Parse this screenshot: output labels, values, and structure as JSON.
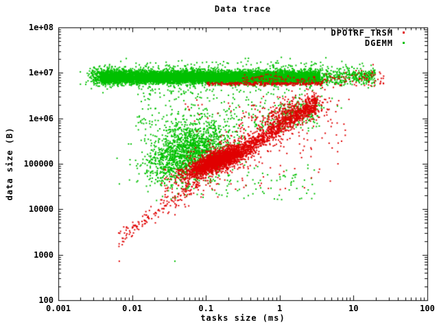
{
  "chart_data": {
    "type": "scatter",
    "title": "Data trace",
    "xlabel": "tasks size (ms)",
    "ylabel": "data size (B)",
    "x_scale": "log",
    "y_scale": "log",
    "xlim": [
      0.001,
      100
    ],
    "ylim": [
      100,
      100000000
    ],
    "grid": false,
    "legend_position": "top-right-inside",
    "x_ticks": [
      {
        "value": 0.001,
        "label": "0.001"
      },
      {
        "value": 0.01,
        "label": "0.01"
      },
      {
        "value": 0.1,
        "label": "0.1"
      },
      {
        "value": 1,
        "label": "1"
      },
      {
        "value": 10,
        "label": "10"
      },
      {
        "value": 100,
        "label": "100"
      }
    ],
    "y_ticks": [
      {
        "value": 100,
        "label": "100"
      },
      {
        "value": 1000,
        "label": "1000"
      },
      {
        "value": 10000,
        "label": "10000"
      },
      {
        "value": 100000,
        "label": "100000"
      },
      {
        "value": 1000000,
        "label": "1e+06"
      },
      {
        "value": 10000000,
        "label": "1e+07"
      },
      {
        "value": 100000000,
        "label": "1e+08"
      }
    ],
    "series": [
      {
        "name": "DPOTRF_TRSM",
        "color": "#e00000"
      },
      {
        "name": "DGEMM",
        "color": "#00c000"
      }
    ],
    "point_clusters": [
      {
        "series": "DGEMM",
        "kind": "band",
        "x0": 0.0038,
        "x1": 3.5,
        "y": 8000000,
        "sy_dec": 0.065,
        "n": 9000
      },
      {
        "series": "DGEMM",
        "kind": "gauss",
        "x": 0.0038,
        "y": 8000000,
        "sx_dec": 0.09,
        "sy_dec": 0.1,
        "rho": 0,
        "n": 250
      },
      {
        "series": "DGEMM",
        "kind": "band",
        "x0": 3.5,
        "x1": 20,
        "y": 8300000,
        "sy_dec": 0.1,
        "n": 350
      },
      {
        "series": "DGEMM",
        "kind": "band",
        "x0": 0.0045,
        "x1": 4.0,
        "y": 8500000,
        "sy_dec": 0.135,
        "n": 700
      },
      {
        "series": "DGEMM",
        "kind": "band",
        "x0": 0.006,
        "x1": 8,
        "y": 15000000,
        "sy_dec": 0.07,
        "n": 60
      },
      {
        "series": "DGEMM",
        "kind": "gauss",
        "x": 0.056,
        "y": 180000,
        "sx_dec": 0.3,
        "sy_dec": 0.33,
        "rho": 0.35,
        "n": 1600
      },
      {
        "series": "DGEMM",
        "kind": "box",
        "x0": 0.011,
        "x1": 3.5,
        "y0": 500000,
        "y1": 4500000,
        "n": 300
      },
      {
        "series": "DGEMM",
        "kind": "gauss",
        "x": 1.6,
        "y": 1260000,
        "sx_dec": 0.22,
        "sy_dec": 0.16,
        "rho": 0.5,
        "n": 180
      },
      {
        "series": "DGEMM",
        "kind": "box",
        "x0": 0.03,
        "x1": 3.0,
        "y0": 16000,
        "y1": 100000,
        "n": 120
      },
      {
        "series": "DGEMM",
        "kind": "point",
        "x": 0.038,
        "y": 720,
        "n": 1
      },
      {
        "series": "DPOTRF_TRSM",
        "kind": "line",
        "x0": 0.0069,
        "y0": 2600,
        "x1": 0.09,
        "y1": 45000,
        "sy_dec": 0.09,
        "n": 130
      },
      {
        "series": "DPOTRF_TRSM",
        "kind": "gauss",
        "x": 0.15,
        "y": 120000,
        "sx_dec": 0.2,
        "sy_dec": 0.16,
        "rho": 0.75,
        "n": 2200
      },
      {
        "series": "DPOTRF_TRSM",
        "kind": "line",
        "x0": 0.35,
        "y0": 220000,
        "x1": 3.2,
        "y1": 2200000,
        "sy_dec": 0.1,
        "n": 700
      },
      {
        "series": "DPOTRF_TRSM",
        "kind": "line",
        "x0": 0.025,
        "y0": 20000,
        "x1": 3.2,
        "y1": 2000000,
        "sy_dec": 0.3,
        "n": 450
      },
      {
        "series": "DPOTRF_TRSM",
        "kind": "band",
        "x0": 0.1,
        "x1": 3.8,
        "y": 5750000,
        "sy_dec": 0.018,
        "n": 260
      },
      {
        "series": "DPOTRF_TRSM",
        "kind": "band",
        "x0": 3.5,
        "x1": 26,
        "y": 7100000,
        "sy_dec": 0.12,
        "n": 80
      },
      {
        "series": "DPOTRF_TRSM",
        "kind": "band",
        "x0": 0.3,
        "x1": 3.2,
        "y": 7600000,
        "sy_dec": 0.05,
        "n": 70
      },
      {
        "series": "DPOTRF_TRSM",
        "kind": "gauss",
        "x": 1.5,
        "y": 1350000,
        "sx_dec": 0.25,
        "sy_dec": 0.14,
        "rho": 0.5,
        "n": 260
      },
      {
        "series": "DPOTRF_TRSM",
        "kind": "box",
        "x0": 0.05,
        "x1": 8,
        "y0": 25000,
        "y1": 3200000,
        "n": 150
      },
      {
        "series": "DPOTRF_TRSM",
        "kind": "point",
        "x": 0.0067,
        "y": 720,
        "n": 1
      }
    ]
  },
  "legend": {
    "items": [
      {
        "label": "DPOTRF_TRSM",
        "color": "#e00000"
      },
      {
        "label": "DGEMM",
        "color": "#00c000"
      }
    ]
  },
  "colors": {
    "foreground": "#000000",
    "background": "#ffffff"
  }
}
